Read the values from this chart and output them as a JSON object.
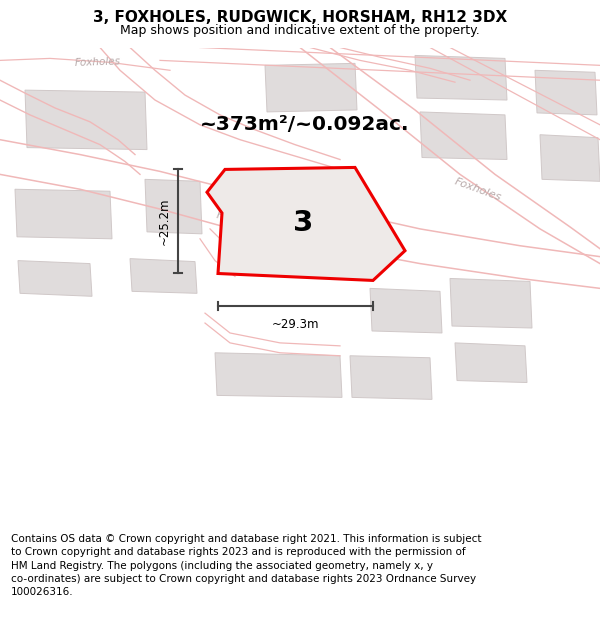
{
  "title": "3, FOXHOLES, RUDGWICK, HORSHAM, RH12 3DX",
  "subtitle": "Map shows position and indicative extent of the property.",
  "area_text": "~373m²/~0.092ac.",
  "number_label": "3",
  "dim_horiz": "~29.3m",
  "dim_vert": "~25.2m",
  "road_label_diag": "Foxholes",
  "road_label_right": "Foxholes",
  "road_label_topleft": "Foxholes",
  "footer": "Contains OS data © Crown copyright and database right 2021. This information is subject to Crown copyright and database rights 2023 and is reproduced with the permission of HM Land Registry. The polygons (including the associated geometry, namely x, y co-ordinates) are subject to Crown copyright and database rights 2023 Ordnance Survey 100026316.",
  "bg_color": "#f8f5f5",
  "road_color": "#f0b8b8",
  "building_fill": "#e0dcdc",
  "building_edge": "#d0c8c8",
  "highlight_fill": "#eeeae8",
  "highlight_edge": "#ee0000",
  "dim_line_color": "#444444",
  "title_fontsize": 11,
  "subtitle_fontsize": 9,
  "area_fontsize": 15,
  "number_fontsize": 20,
  "footer_fontsize": 7.5,
  "road_text_color": "#c0b0b0"
}
